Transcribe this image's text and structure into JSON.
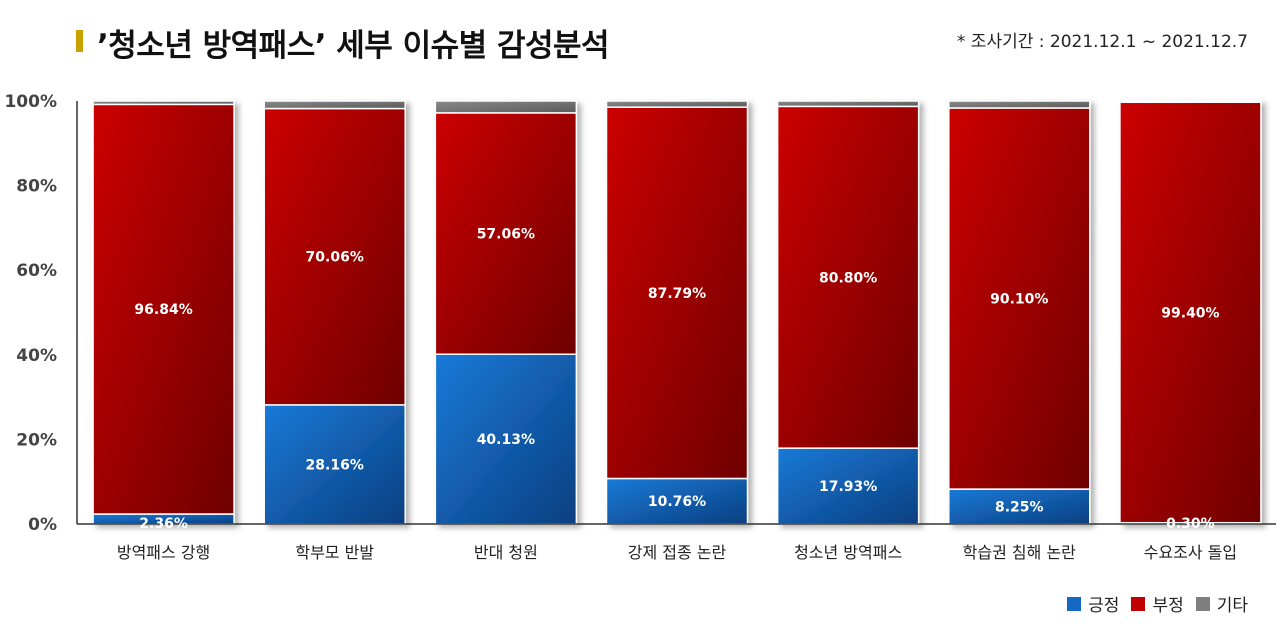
{
  "title": "’청소년 방역패스’ 세부 이슈별 감성분석",
  "note": "* 조사기간 : 2021.12.1 ~ 2021.12.7",
  "colors": {
    "positive": "#1469c4",
    "negative": "#c00000",
    "other": "#7f7f7f",
    "accent": "#c9a200"
  },
  "chart_data": {
    "type": "bar",
    "stacked": true,
    "categories": [
      "방역패스 강행",
      "학부모 반발",
      "반대 청원",
      "강제 접종 논란",
      "청소년 방역패스",
      "학습권 침해 논란",
      "수요조사 돌입"
    ],
    "series": [
      {
        "name": "긍정",
        "values": [
          2.36,
          28.16,
          40.13,
          10.76,
          17.93,
          8.25,
          0.3
        ]
      },
      {
        "name": "부정",
        "values": [
          96.84,
          70.06,
          57.06,
          87.79,
          80.8,
          90.1,
          99.4
        ]
      },
      {
        "name": "기타",
        "values": [
          0.8,
          1.78,
          2.81,
          1.45,
          1.27,
          1.65,
          0.3
        ]
      }
    ],
    "data_labels": {
      "긍정": [
        "2.36%",
        "28.16%",
        "40.13%",
        "10.76%",
        "17.93%",
        "8.25%",
        "0.30%"
      ],
      "부정": [
        "96.84%",
        "70.06%",
        "57.06%",
        "87.79%",
        "80.80%",
        "90.10%",
        "99.40%"
      ]
    },
    "yticks": [
      "0%",
      "20%",
      "40%",
      "60%",
      "80%",
      "100%"
    ],
    "ylim": [
      0,
      100
    ],
    "legend_position": "bottom-right",
    "grid": false
  }
}
